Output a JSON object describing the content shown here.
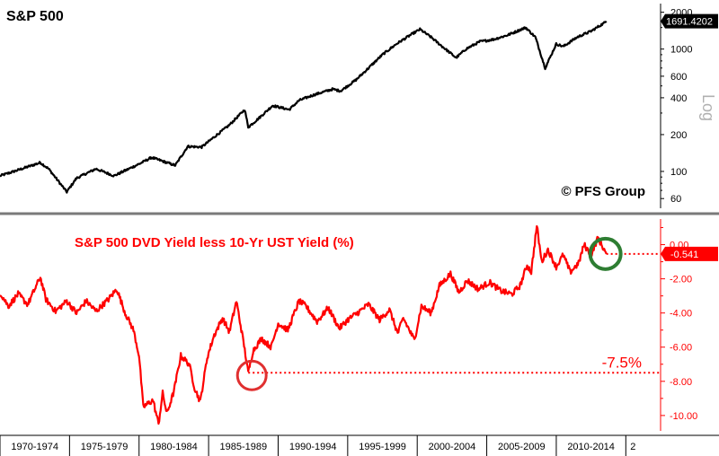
{
  "chart_data": [
    {
      "type": "line",
      "title": "S&P 500",
      "yscale": "log",
      "ylim": [
        50,
        2200
      ],
      "yticks": [
        60,
        100,
        200,
        400,
        600,
        1000,
        2000
      ],
      "yticklabels": [
        "60",
        "100",
        "200",
        "400",
        "600",
        "1000",
        "2000"
      ],
      "ylabel": "Log",
      "last_value_label": "1691.4202",
      "annotation": "© PFS Group",
      "color": "#000000",
      "series": [
        {
          "x": [
            1970.0,
            1971.0,
            1972.9,
            1973.5,
            1974.8,
            1975.5,
            1976.9,
            1978.2,
            1980.0,
            1980.9,
            1982.6,
            1983.5,
            1984.5,
            1985.5,
            1986.5,
            1987.6,
            1987.85,
            1988.5,
            1989.6,
            1990.8,
            1991.5,
            1992.5,
            1993.9,
            1994.5,
            1995.6,
            1996.5,
            1997.5,
            1998.5,
            1999.5,
            2000.2,
            2001.0,
            2001.8,
            2002.8,
            2003.5,
            2004.5,
            2005.5,
            2006.5,
            2007.8,
            2008.5,
            2009.2,
            2010.0,
            2010.5,
            2011.5,
            2012.5,
            2013.5,
            2013.6
          ],
          "y": [
            92,
            100,
            118,
            105,
            68,
            88,
            105,
            92,
            115,
            130,
            112,
            160,
            158,
            195,
            240,
            320,
            230,
            265,
            345,
            320,
            380,
            420,
            470,
            455,
            560,
            700,
            900,
            1100,
            1300,
            1450,
            1250,
            1050,
            850,
            1000,
            1150,
            1200,
            1300,
            1500,
            1250,
            700,
            1100,
            1050,
            1250,
            1400,
            1650,
            1691
          ]
        }
      ]
    },
    {
      "type": "line",
      "title": "S&P 500 DVD Yield less 10-Yr UST Yield (%)",
      "ylim": [
        -10.9,
        1.5
      ],
      "yticks": [
        0,
        -2,
        -4,
        -6,
        -8,
        -10
      ],
      "yticklabels": [
        "0.00",
        "-2.00",
        "-4.00",
        "-6.00",
        "-8.00",
        "-10.00"
      ],
      "last_value_label": "-0.541",
      "annotation": "-7.5%",
      "reference_value": -7.5,
      "color": "#ff0000",
      "series": [
        {
          "x": [
            1970.0,
            1970.6,
            1971.3,
            1972.0,
            1972.9,
            1973.3,
            1974.0,
            1974.8,
            1975.5,
            1976.2,
            1976.9,
            1977.8,
            1978.4,
            1979.0,
            1979.6,
            1980.0,
            1980.3,
            1981.0,
            1981.4,
            1981.7,
            1982.0,
            1982.5,
            1983.0,
            1983.6,
            1984.0,
            1984.4,
            1984.9,
            1985.4,
            1986.0,
            1986.5,
            1987.0,
            1987.55,
            1987.85,
            1988.2,
            1988.8,
            1989.5,
            1990.0,
            1990.7,
            1991.5,
            1992.0,
            1992.8,
            1993.6,
            1994.4,
            1995.0,
            1995.7,
            1996.5,
            1997.3,
            1998.0,
            1998.6,
            1999.0,
            1999.8,
            2000.3,
            2001.0,
            2001.6,
            2002.4,
            2003.0,
            2003.6,
            2004.4,
            2005.2,
            2006.0,
            2006.8,
            2007.4,
            2007.9,
            2008.2,
            2008.6,
            2008.95,
            2009.4,
            2010.0,
            2010.5,
            2011.0,
            2011.6,
            2012.0,
            2012.5,
            2013.0,
            2013.6
          ],
          "y": [
            -2.8,
            -3.6,
            -2.9,
            -3.5,
            -1.9,
            -3.2,
            -3.9,
            -3.3,
            -4.0,
            -3.3,
            -3.9,
            -3.2,
            -2.6,
            -4.0,
            -5.0,
            -6.5,
            -9.5,
            -9.1,
            -10.5,
            -8.7,
            -9.9,
            -8.6,
            -6.5,
            -7.0,
            -8.4,
            -9.2,
            -6.6,
            -5.3,
            -4.3,
            -5.1,
            -3.3,
            -5.9,
            -7.5,
            -6.2,
            -5.5,
            -6.0,
            -4.6,
            -5.0,
            -3.3,
            -3.6,
            -4.5,
            -3.7,
            -4.9,
            -4.4,
            -4.0,
            -3.5,
            -4.4,
            -3.8,
            -5.2,
            -4.3,
            -5.6,
            -3.6,
            -4.0,
            -2.4,
            -1.7,
            -2.8,
            -2.1,
            -2.6,
            -2.2,
            -2.7,
            -2.9,
            -2.4,
            -1.2,
            -1.6,
            1.1,
            -1.0,
            -0.3,
            -1.3,
            -0.6,
            -1.6,
            -1.1,
            0.0,
            -0.6,
            0.4,
            -0.54
          ]
        }
      ]
    }
  ],
  "x_axis": {
    "xlim": [
      1970,
      2017.5
    ],
    "categories": [
      "1970-1974",
      "1975-1979",
      "1980-1984",
      "1985-1989",
      "1990-1994",
      "1995-1999",
      "2000-2004",
      "2005-2009",
      "2010-2014",
      "2"
    ]
  },
  "colors": {
    "top_line": "#000000",
    "bottom_line": "#ff0000",
    "top_axis_text": "#000000",
    "bottom_axis_text": "#ff0000",
    "green_circle": "#2e7d32",
    "red_circle": "#e03030",
    "divider": "#7a7a7a"
  }
}
